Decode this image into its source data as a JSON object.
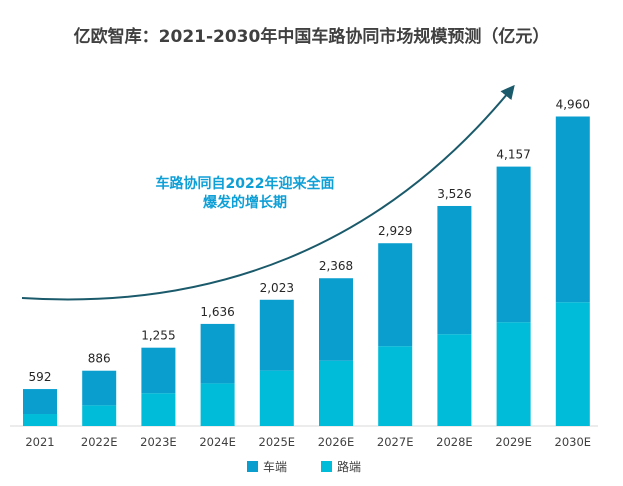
{
  "chart_data": {
    "type": "bar",
    "stacked": true,
    "title": "亿欧智库：2021-2030年中国车路协同市场规模预测（亿元）",
    "categories": [
      "2021",
      "2022E",
      "2023E",
      "2024E",
      "2025E",
      "2026E",
      "2027E",
      "2028E",
      "2029E",
      "2030E"
    ],
    "totals": [
      592,
      886,
      1255,
      1636,
      2023,
      2368,
      2929,
      3526,
      4157,
      4960
    ],
    "total_labels": [
      "592",
      "886",
      "1,255",
      "1,636",
      "2,023",
      "2,368",
      "2,929",
      "3,526",
      "4,157",
      "4,960"
    ],
    "series": [
      {
        "name": "路端",
        "color": "#00bcd8",
        "values": [
          192,
          331,
          526,
          683,
          887,
          1046,
          1279,
          1471,
          1664,
          1984
        ]
      },
      {
        "name": "车端",
        "color": "#0a9ecf",
        "values": [
          400,
          555,
          729,
          953,
          1136,
          1322,
          1650,
          2055,
          2493,
          2976
        ]
      }
    ],
    "legend": [
      "车端",
      "路端"
    ],
    "annotation": [
      "车路协同自2022年迎来全面",
      "爆发的增长期"
    ],
    "trend_arrow_color": "#1a5a6b"
  }
}
